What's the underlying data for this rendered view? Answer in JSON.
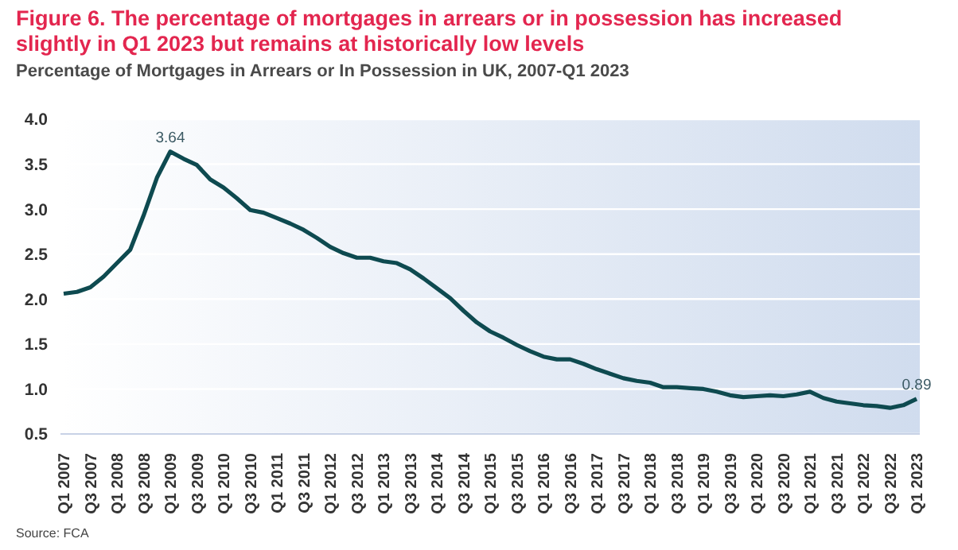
{
  "chart_data": {
    "type": "line",
    "title": "Figure 6. The percentage of mortgages in arrears or in possession has increased slightly in Q1 2023 but remains at historically low levels",
    "subtitle": "Percentage of Mortgages in Arrears or In Possession in UK, 2007-Q1 2023",
    "categories": [
      "Q1 2007",
      null,
      "Q3 2007",
      null,
      "Q1 2008",
      null,
      "Q3 2008",
      null,
      "Q1 2009",
      null,
      "Q3 2009",
      null,
      "Q1 2010",
      null,
      "Q3 2010",
      null,
      "Q1 2011",
      null,
      "Q3 2011",
      null,
      "Q1 2012",
      null,
      "Q3 2012",
      null,
      "Q1 2013",
      null,
      "Q3 2013",
      null,
      "Q1 2014",
      null,
      "Q3 2014",
      null,
      "Q1 2015",
      null,
      "Q3 2015",
      null,
      "Q1 2016",
      null,
      "Q3 2016",
      null,
      "Q1 2017",
      null,
      "Q3 2017",
      null,
      "Q1 2018",
      null,
      "Q3 2018",
      null,
      "Q1 2019",
      null,
      "Q3 2019",
      null,
      "Q1 2020",
      null,
      "Q3 2020",
      null,
      "Q1 2021",
      null,
      "Q3 2021",
      null,
      "Q1 2022",
      null,
      "Q3 2022",
      null,
      "Q1 2023"
    ],
    "series": [
      {
        "color": "#0e4a50",
        "values": [
          2.06,
          2.08,
          2.13,
          2.25,
          2.4,
          2.55,
          2.93,
          3.35,
          3.64,
          3.56,
          3.49,
          3.33,
          3.24,
          3.12,
          2.99,
          2.96,
          2.9,
          2.84,
          2.77,
          2.68,
          2.58,
          2.51,
          2.46,
          2.46,
          2.42,
          2.4,
          2.33,
          2.23,
          2.12,
          2.01,
          1.87,
          1.74,
          1.64,
          1.57,
          1.49,
          1.42,
          1.36,
          1.33,
          1.33,
          1.28,
          1.22,
          1.17,
          1.12,
          1.09,
          1.07,
          1.02,
          1.02,
          1.01,
          1.0,
          0.97,
          0.93,
          0.91,
          0.92,
          0.93,
          0.92,
          0.94,
          0.97,
          0.9,
          0.86,
          0.84,
          0.82,
          0.81,
          0.79,
          0.82,
          0.89
        ],
        "value_labels": [
          null,
          null,
          null,
          null,
          null,
          null,
          null,
          null,
          "3.64",
          null,
          null,
          null,
          null,
          null,
          null,
          null,
          null,
          null,
          null,
          null,
          null,
          null,
          null,
          null,
          null,
          null,
          null,
          null,
          null,
          null,
          null,
          null,
          null,
          null,
          null,
          null,
          null,
          null,
          null,
          null,
          null,
          null,
          null,
          null,
          null,
          null,
          null,
          null,
          null,
          null,
          null,
          null,
          null,
          null,
          null,
          null,
          null,
          null,
          null,
          null,
          null,
          null,
          null,
          null,
          "0.89"
        ]
      }
    ],
    "ylim": [
      0.5,
      4.0
    ],
    "yticks": [
      {
        "value": 0.5,
        "label": "0.5"
      },
      {
        "value": 1,
        "label": "1.0"
      },
      {
        "value": 1.5,
        "label": "1.5"
      },
      {
        "value": 2,
        "label": "2.0"
      },
      {
        "value": 2.5,
        "label": "2.5"
      },
      {
        "value": 3,
        "label": "3.0"
      },
      {
        "value": 3.5,
        "label": "3.5"
      },
      {
        "value": 4,
        "label": "4.0"
      }
    ],
    "grid": "y",
    "legend": false,
    "marker": "none",
    "line_style": "solid",
    "annotations": [
      "Source: FCA"
    ]
  }
}
